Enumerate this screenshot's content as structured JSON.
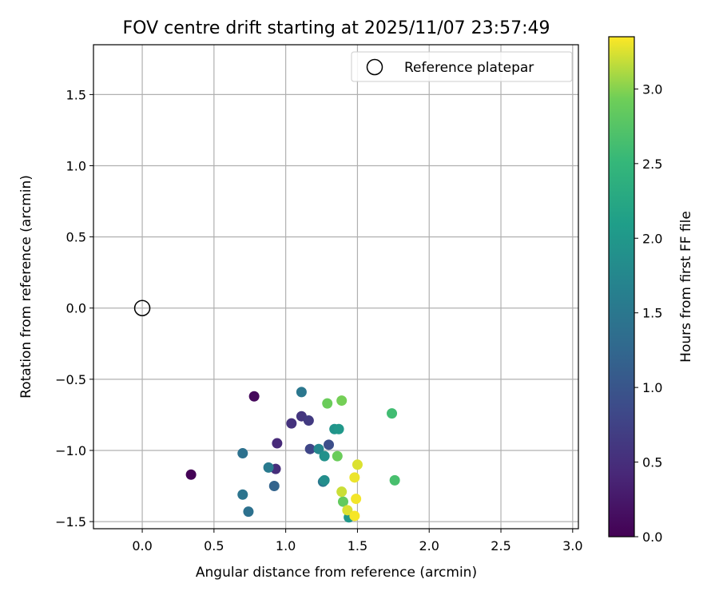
{
  "chart_data": {
    "type": "scatter",
    "title": "FOV centre drift starting at 2025/11/07 23:57:49",
    "xlabel": "Angular distance from reference (arcmin)",
    "ylabel": "Rotation from reference (arcmin)",
    "xlim": [
      -0.34,
      3.04
    ],
    "ylim": [
      -1.55,
      1.85
    ],
    "xticks": [
      0.0,
      0.5,
      1.0,
      1.5,
      2.0,
      2.5,
      3.0
    ],
    "xtick_labels": [
      "0.0",
      "0.5",
      "1.0",
      "1.5",
      "2.0",
      "2.5",
      "3.0"
    ],
    "yticks": [
      -1.5,
      -1.0,
      -0.5,
      0.0,
      0.5,
      1.0,
      1.5
    ],
    "ytick_labels": [
      "−1.5",
      "−1.0",
      "−0.5",
      "0.0",
      "0.5",
      "1.0",
      "1.5"
    ],
    "grid": true,
    "legend": {
      "position": "top-right",
      "entries": [
        {
          "label": "Reference platepar",
          "marker": "open-circle"
        }
      ]
    },
    "reference": {
      "x": 0.0,
      "y": 0.0
    },
    "colorbar": {
      "label": "Hours from first FF file",
      "colormap": "viridis",
      "range": [
        0.0,
        3.35
      ],
      "ticks": [
        0.0,
        0.5,
        1.0,
        1.5,
        2.0,
        2.5,
        3.0
      ],
      "tick_labels": [
        "0.0",
        "0.5",
        "1.0",
        "1.5",
        "2.0",
        "2.5",
        "3.0"
      ]
    },
    "points": [
      {
        "x": 0.34,
        "y": -1.17,
        "hours": 0.02
      },
      {
        "x": 0.78,
        "y": -0.62,
        "hours": 0.08
      },
      {
        "x": 0.94,
        "y": -0.95,
        "hours": 0.45
      },
      {
        "x": 0.93,
        "y": -1.13,
        "hours": 0.5
      },
      {
        "x": 1.04,
        "y": -0.81,
        "hours": 0.55
      },
      {
        "x": 1.11,
        "y": -0.76,
        "hours": 0.6
      },
      {
        "x": 1.16,
        "y": -0.79,
        "hours": 0.65
      },
      {
        "x": 1.17,
        "y": -0.99,
        "hours": 0.8
      },
      {
        "x": 1.3,
        "y": -0.96,
        "hours": 0.9
      },
      {
        "x": 0.92,
        "y": -1.25,
        "hours": 1.2
      },
      {
        "x": 0.7,
        "y": -1.02,
        "hours": 1.4
      },
      {
        "x": 0.7,
        "y": -1.31,
        "hours": 1.45
      },
      {
        "x": 0.74,
        "y": -1.43,
        "hours": 1.4
      },
      {
        "x": 1.11,
        "y": -0.59,
        "hours": 1.5
      },
      {
        "x": 0.88,
        "y": -1.12,
        "hours": 1.55
      },
      {
        "x": 1.26,
        "y": -1.22,
        "hours": 1.5
      },
      {
        "x": 1.23,
        "y": -0.99,
        "hours": 1.75
      },
      {
        "x": 1.27,
        "y": -1.21,
        "hours": 1.85
      },
      {
        "x": 1.27,
        "y": -1.04,
        "hours": 1.9
      },
      {
        "x": 1.34,
        "y": -0.85,
        "hours": 1.95
      },
      {
        "x": 1.37,
        "y": -0.85,
        "hours": 2.0
      },
      {
        "x": 1.44,
        "y": -1.47,
        "hours": 2.0
      },
      {
        "x": 1.74,
        "y": -0.74,
        "hours": 2.6
      },
      {
        "x": 1.76,
        "y": -1.21,
        "hours": 2.65
      },
      {
        "x": 1.29,
        "y": -0.67,
        "hours": 2.9
      },
      {
        "x": 1.39,
        "y": -0.65,
        "hours": 2.95
      },
      {
        "x": 1.36,
        "y": -1.04,
        "hours": 2.9
      },
      {
        "x": 1.4,
        "y": -1.36,
        "hours": 2.85
      },
      {
        "x": 1.39,
        "y": -1.29,
        "hours": 3.2
      },
      {
        "x": 1.43,
        "y": -1.42,
        "hours": 3.25
      },
      {
        "x": 1.5,
        "y": -1.1,
        "hours": 3.25
      },
      {
        "x": 1.48,
        "y": -1.19,
        "hours": 3.3
      },
      {
        "x": 1.49,
        "y": -1.34,
        "hours": 3.32
      },
      {
        "x": 1.48,
        "y": -1.46,
        "hours": 3.33
      }
    ]
  }
}
